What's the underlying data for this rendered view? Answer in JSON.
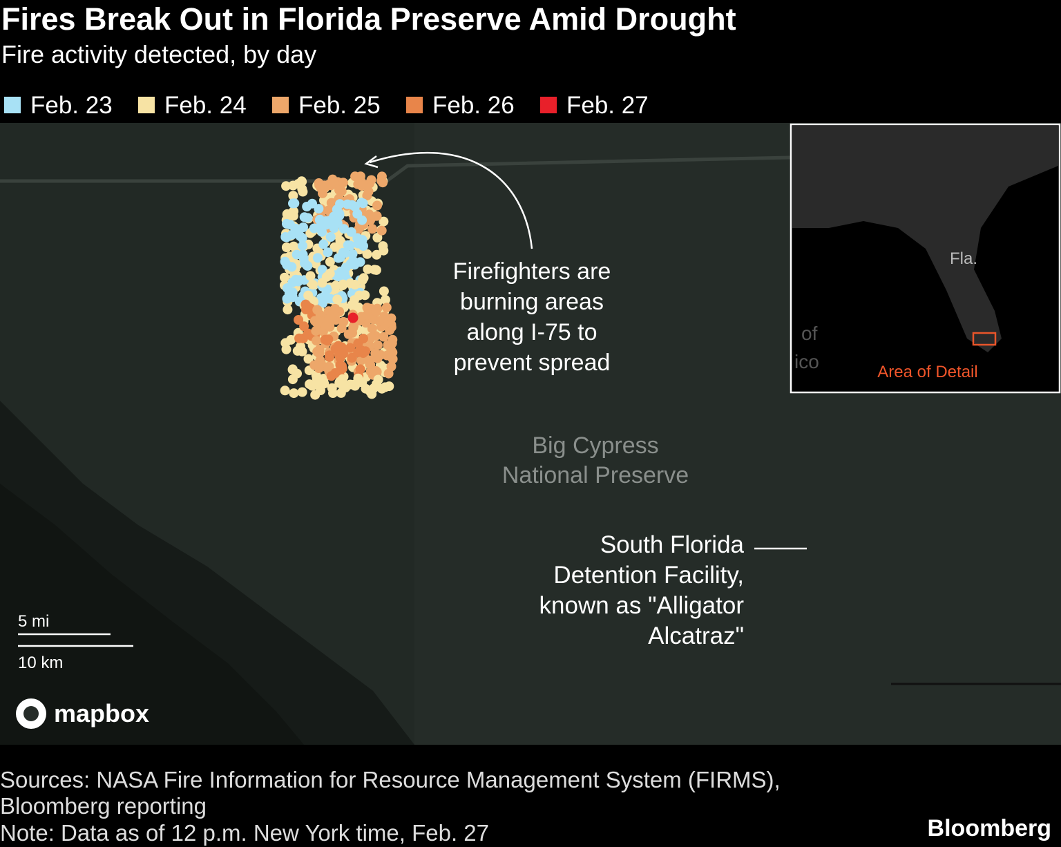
{
  "header": {
    "title": "Fires Break Out in Florida Preserve Amid Drought",
    "subtitle": "Fire activity detected, by day"
  },
  "legend": [
    {
      "label": "Feb. 23",
      "color": "#a8e1f5"
    },
    {
      "label": "Feb. 24",
      "color": "#f7e3a4"
    },
    {
      "label": "Feb. 25",
      "color": "#eda76a"
    },
    {
      "label": "Feb. 26",
      "color": "#e8854a"
    },
    {
      "label": "Feb. 27",
      "color": "#e8202a"
    }
  ],
  "map": {
    "annotation": [
      "Firefighters are",
      "burning areas",
      "along I-75 to",
      "prevent spread"
    ],
    "place_label": [
      "Big Cypress",
      "National Preserve"
    ],
    "facility_label": [
      "South Florida",
      "Detention Facility,",
      "known as \"Alligator",
      "Alcatraz\""
    ],
    "inset": {
      "state_label": "Fla.",
      "gulf_label": [
        "of",
        "ico"
      ],
      "detail_label": "Area of Detail"
    },
    "scale": {
      "miles": "5 mi",
      "km": "10 km"
    },
    "attribution": "mapbox"
  },
  "footer": {
    "source_lines": [
      "Sources: NASA Fire Information for Resource Management System (FIRMS),",
      "Bloomberg reporting"
    ],
    "note": "Note: Data as of 12 p.m. New York time, Feb. 27",
    "brand": "Bloomberg"
  }
}
